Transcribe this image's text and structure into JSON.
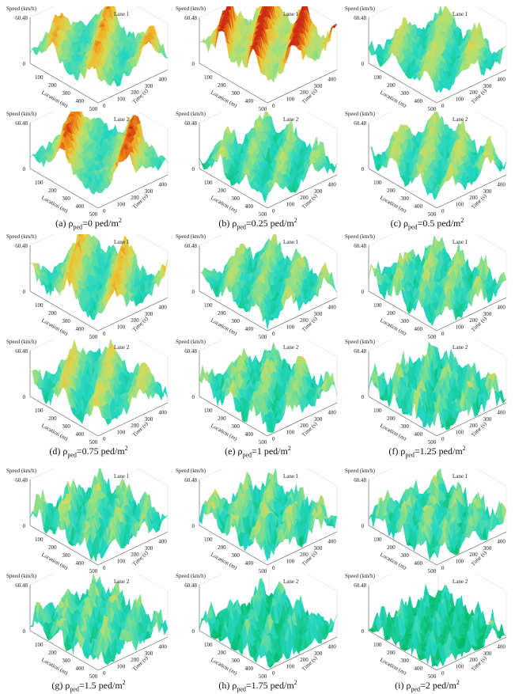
{
  "figure": {
    "shared": {
      "z_label": "Speed (km/h)",
      "z_tick_top": "60.48",
      "z_tick_zero": "0",
      "x_label": "Location (m)",
      "y_label": "Time (s)",
      "x_ticks": [
        "100",
        "200",
        "300",
        "400",
        "500"
      ],
      "y_ticks": [
        "0",
        "100",
        "200",
        "300",
        "400",
        "500"
      ]
    },
    "colors": {
      "cmap": [
        "#00b35a",
        "#16c98c",
        "#22d6c4",
        "#5fdca3",
        "#a5e07a",
        "#d6d957",
        "#f0bb2c",
        "#e87414",
        "#cc2a12"
      ]
    },
    "panels": [
      {
        "id": "a",
        "caption_prefix": "(a) ",
        "rho": "ρ",
        "sub": "ped",
        "caption_value": "=0 ped/m",
        "sup": "2"
      },
      {
        "id": "b",
        "caption_prefix": "(b) ",
        "rho": "ρ",
        "sub": "ped",
        "caption_value": "=0.25 ped/m",
        "sup": "2"
      },
      {
        "id": "c",
        "caption_prefix": "(c) ",
        "rho": "ρ",
        "sub": "ped",
        "caption_value": "=0.5 ped/m",
        "sup": "2"
      },
      {
        "id": "d",
        "caption_prefix": "(d) ",
        "rho": "ρ",
        "sub": "ped",
        "caption_value": "=0.75 ped/m",
        "sup": "2"
      },
      {
        "id": "e",
        "caption_prefix": "(e) ",
        "rho": "ρ",
        "sub": "ped",
        "caption_value": "=1 ped/m",
        "sup": "2"
      },
      {
        "id": "f",
        "caption_prefix": "(f) ",
        "rho": "ρ",
        "sub": "ped",
        "caption_value": "=1.25 ped/m",
        "sup": "2"
      },
      {
        "id": "g",
        "caption_prefix": "(g) ",
        "rho": "ρ",
        "sub": "ped",
        "caption_value": "=1.5 ped/m",
        "sup": "2"
      },
      {
        "id": "h",
        "caption_prefix": "(h) ",
        "rho": "ρ",
        "sub": "ped",
        "caption_value": "=1.75 ped/m",
        "sup": "2"
      },
      {
        "id": "i",
        "caption_prefix": "(i) ",
        "rho": "ρ",
        "sub": "ped",
        "caption_value": "=2 ped/m",
        "sup": "2"
      }
    ]
  },
  "chart_data": [
    {
      "type": "surface3d",
      "panel": "a",
      "title": "Lane 1",
      "xlabel": "Location (m)",
      "ylabel": "Time (s)",
      "zlabel": "Speed (km/h)",
      "xlim": [
        0,
        500
      ],
      "ylim": [
        0,
        500
      ],
      "zlim": [
        0,
        60.48
      ],
      "mean_level": 0.42,
      "roughness": 0.25,
      "waves": 4,
      "hot_level": 0.35
    },
    {
      "type": "surface3d",
      "panel": "a",
      "title": "Lane 2",
      "xlabel": "Location (m)",
      "ylabel": "Time (s)",
      "zlabel": "Speed (km/h)",
      "xlim": [
        0,
        500
      ],
      "ylim": [
        0,
        500
      ],
      "zlim": [
        0,
        60.48
      ],
      "mean_level": 0.42,
      "roughness": 0.25,
      "waves": 3,
      "hot_level": 0.55
    },
    {
      "type": "surface3d",
      "panel": "b",
      "title": "Lane 1",
      "xlabel": "Location (m)",
      "ylabel": "Time (s)",
      "zlabel": "Speed (km/h)",
      "xlim": [
        0,
        500
      ],
      "ylim": [
        0,
        500
      ],
      "zlim": [
        0,
        60.48
      ],
      "mean_level": 0.62,
      "roughness": 0.3,
      "waves": 5,
      "hot_level": 0.6
    },
    {
      "type": "surface3d",
      "panel": "b",
      "title": "Lane 2",
      "xlabel": "Location (m)",
      "ylabel": "Time (s)",
      "zlabel": "Speed (km/h)",
      "xlim": [
        0,
        500
      ],
      "ylim": [
        0,
        500
      ],
      "zlim": [
        0,
        60.48
      ],
      "mean_level": 0.3,
      "roughness": 0.35,
      "waves": 6,
      "hot_level": 0.05
    },
    {
      "type": "surface3d",
      "panel": "c",
      "title": "Lane 1",
      "xlabel": "Location (m)",
      "ylabel": "Time (s)",
      "zlabel": "Speed (km/h)",
      "xlim": [
        0,
        500
      ],
      "ylim": [
        0,
        500
      ],
      "zlim": [
        0,
        60.48
      ],
      "mean_level": 0.35,
      "roughness": 0.3,
      "waves": 5,
      "hot_level": 0.1
    },
    {
      "type": "surface3d",
      "panel": "c",
      "title": "Lane 2",
      "xlabel": "Location (m)",
      "ylabel": "Time (s)",
      "zlabel": "Speed (km/h)",
      "xlim": [
        0,
        500
      ],
      "ylim": [
        0,
        500
      ],
      "zlim": [
        0,
        60.48
      ],
      "mean_level": 0.35,
      "roughness": 0.3,
      "waves": 6,
      "hot_level": 0.1
    },
    {
      "type": "surface3d",
      "panel": "d",
      "title": "Lane 1",
      "xlabel": "Location (m)",
      "ylabel": "Time (s)",
      "zlabel": "Speed (km/h)",
      "xlim": [
        0,
        500
      ],
      "ylim": [
        0,
        500
      ],
      "zlim": [
        0,
        60.48
      ],
      "mean_level": 0.38,
      "roughness": 0.35,
      "waves": 4,
      "hot_level": 0.3
    },
    {
      "type": "surface3d",
      "panel": "d",
      "title": "Lane 2",
      "xlabel": "Location (m)",
      "ylabel": "Time (s)",
      "zlabel": "Speed (km/h)",
      "xlim": [
        0,
        500
      ],
      "ylim": [
        0,
        500
      ],
      "zlim": [
        0,
        60.48
      ],
      "mean_level": 0.35,
      "roughness": 0.35,
      "waves": 5,
      "hot_level": 0.2
    },
    {
      "type": "surface3d",
      "panel": "e",
      "title": "Lane 1",
      "xlabel": "Location (m)",
      "ylabel": "Time (s)",
      "zlabel": "Speed (km/h)",
      "xlim": [
        0,
        500
      ],
      "ylim": [
        0,
        500
      ],
      "zlim": [
        0,
        60.48
      ],
      "mean_level": 0.32,
      "roughness": 0.35,
      "waves": 6,
      "hot_level": 0.05
    },
    {
      "type": "surface3d",
      "panel": "e",
      "title": "Lane 2",
      "xlabel": "Location (m)",
      "ylabel": "Time (s)",
      "zlabel": "Speed (km/h)",
      "xlim": [
        0,
        500
      ],
      "ylim": [
        0,
        500
      ],
      "zlim": [
        0,
        60.48
      ],
      "mean_level": 0.3,
      "roughness": 0.4,
      "waves": 6,
      "hot_level": 0.05
    },
    {
      "type": "surface3d",
      "panel": "f",
      "title": "Lane 1",
      "xlabel": "Location (m)",
      "ylabel": "Time (s)",
      "zlabel": "Speed (km/h)",
      "xlim": [
        0,
        500
      ],
      "ylim": [
        0,
        500
      ],
      "zlim": [
        0,
        60.48
      ],
      "mean_level": 0.3,
      "roughness": 0.45,
      "waves": 7,
      "hot_level": 0.03
    },
    {
      "type": "surface3d",
      "panel": "f",
      "title": "Lane 2",
      "xlabel": "Location (m)",
      "ylabel": "Time (s)",
      "zlabel": "Speed (km/h)",
      "xlim": [
        0,
        500
      ],
      "ylim": [
        0,
        500
      ],
      "zlim": [
        0,
        60.48
      ],
      "mean_level": 0.24,
      "roughness": 0.55,
      "waves": 8,
      "hot_level": 0.0
    },
    {
      "type": "surface3d",
      "panel": "g",
      "title": "Lane 1",
      "xlabel": "Location (m)",
      "ylabel": "Time (s)",
      "zlabel": "Speed (km/h)",
      "xlim": [
        0,
        500
      ],
      "ylim": [
        0,
        500
      ],
      "zlim": [
        0,
        60.48
      ],
      "mean_level": 0.3,
      "roughness": 0.45,
      "waves": 7,
      "hot_level": 0.03
    },
    {
      "type": "surface3d",
      "panel": "g",
      "title": "Lane 2",
      "xlabel": "Location (m)",
      "ylabel": "Time (s)",
      "zlabel": "Speed (km/h)",
      "xlim": [
        0,
        500
      ],
      "ylim": [
        0,
        500
      ],
      "zlim": [
        0,
        60.48
      ],
      "mean_level": 0.26,
      "roughness": 0.5,
      "waves": 8,
      "hot_level": 0.0
    },
    {
      "type": "surface3d",
      "panel": "h",
      "title": "Lane 1",
      "xlabel": "Location (m)",
      "ylabel": "Time (s)",
      "zlabel": "Speed (km/h)",
      "xlim": [
        0,
        500
      ],
      "ylim": [
        0,
        500
      ],
      "zlim": [
        0,
        60.48
      ],
      "mean_level": 0.3,
      "roughness": 0.45,
      "waves": 7,
      "hot_level": 0.04
    },
    {
      "type": "surface3d",
      "panel": "h",
      "title": "Lane 2",
      "xlabel": "Location (m)",
      "ylabel": "Time (s)",
      "zlabel": "Speed (km/h)",
      "xlim": [
        0,
        500
      ],
      "ylim": [
        0,
        500
      ],
      "zlim": [
        0,
        60.48
      ],
      "mean_level": 0.16,
      "roughness": 0.55,
      "waves": 9,
      "hot_level": 0.0
    },
    {
      "type": "surface3d",
      "panel": "i",
      "title": "Lane 1",
      "xlabel": "Location (m)",
      "ylabel": "Time (s)",
      "zlabel": "Speed (km/h)",
      "xlim": [
        0,
        500
      ],
      "ylim": [
        0,
        500
      ],
      "zlim": [
        0,
        60.48
      ],
      "mean_level": 0.28,
      "roughness": 0.45,
      "waves": 8,
      "hot_level": 0.0
    },
    {
      "type": "surface3d",
      "panel": "i",
      "title": "Lane 2",
      "xlabel": "Location (m)",
      "ylabel": "Time (s)",
      "zlabel": "Speed (km/h)",
      "xlim": [
        0,
        500
      ],
      "ylim": [
        0,
        500
      ],
      "zlim": [
        0,
        60.48
      ],
      "mean_level": 0.1,
      "roughness": 0.55,
      "waves": 10,
      "hot_level": 0.0
    }
  ]
}
